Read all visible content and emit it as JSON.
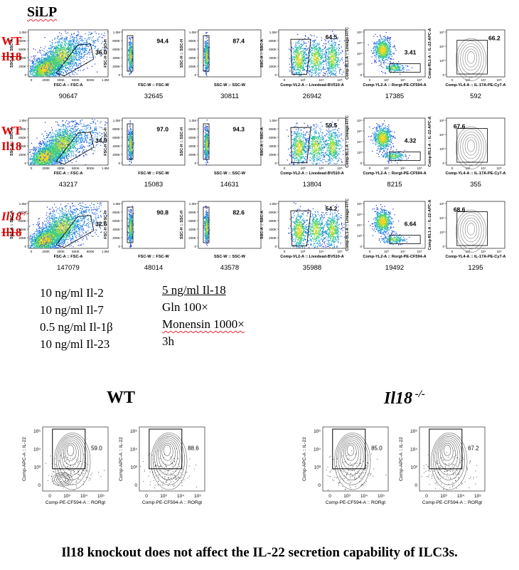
{
  "header": {
    "title": "SiLP"
  },
  "rows": [
    {
      "label_line1": "WT",
      "label_line2": "Il18",
      "line1_italic": false,
      "line1_sup": "",
      "line2_strike": true,
      "plots": [
        {
          "type": "scatter",
          "xlabel": "FSC-A :: FSC-A",
          "ylabel": "SSC-A :: SSC-A",
          "pct": "36.0",
          "count": "90647",
          "xticks": [
            "0",
            "200K",
            "400K",
            "600K",
            "800K",
            "1.0M"
          ],
          "yticks": [
            "1.0M",
            "800K",
            "600K",
            "400K",
            "200K",
            "0"
          ]
        },
        {
          "type": "narrow",
          "xlabel": "FSC-W :: FSC-W",
          "ylabel": "FSC-H :: FSC-H",
          "pct": "94.4",
          "count": "32645",
          "xticks": [],
          "yticks": [
            "1.0M",
            "800K",
            "600K",
            "400K",
            "200K",
            "0"
          ]
        },
        {
          "type": "narrow",
          "xlabel": "SSC-W :: SSC-W",
          "ylabel": "SSC-H :: SSC-H",
          "pct": "87.4",
          "count": "30811",
          "xticks": [],
          "yticks": [
            "1.0M",
            "800K",
            "600K",
            "400K",
            "200K",
            "0"
          ]
        },
        {
          "type": "live",
          "xlabel": "Comp-VL2-A :: Livedead-BV510-A",
          "ylabel": "SSC-A :: SSC-A",
          "pct": "64.5",
          "count": "26942",
          "xticks": [],
          "yticks": [
            "1.0M",
            "800K",
            "600K",
            "400K",
            "200K",
            "0"
          ]
        },
        {
          "type": "lin",
          "xlabel": "Comp-YL2-A :: Rorgt-PE-CF594-A",
          "ylabel": "Comp-BL1-A :: Lineage-FITC",
          "pct": "3.41",
          "count": "17385",
          "xticks": [],
          "yticks": [
            "10⁶",
            "10⁵",
            "10⁴",
            "10³",
            "0"
          ]
        },
        {
          "type": "contour",
          "xlabel": "Comp-YL4-A :: IL-17A-PE-Cy7-A",
          "ylabel": "Comp-RL1-A :: IL-22-APC-A",
          "pct": "66.2",
          "count": "592",
          "xticks": [],
          "yticks": [
            "10⁵",
            "10⁴",
            "10³",
            "0"
          ]
        }
      ]
    },
    {
      "label_line1": "WT",
      "label_line2": "Il18",
      "line1_italic": false,
      "line1_sup": "",
      "line2_strike": false,
      "plots": [
        {
          "type": "scatter",
          "xlabel": "FSC-A :: FSC-A",
          "ylabel": "SSC-A :: SSC-A",
          "pct": "34.9",
          "count": "43217",
          "xticks": [
            "0",
            "200K",
            "400K",
            "600K",
            "800K",
            "1.0M"
          ],
          "yticks": [
            "1.0M",
            "800K",
            "600K",
            "400K",
            "200K",
            "0"
          ]
        },
        {
          "type": "narrow",
          "xlabel": "FSC-W :: FSC-W",
          "ylabel": "FSC-H :: FSC-H",
          "pct": "97.0",
          "count": "15083",
          "xticks": [],
          "yticks": [
            "1.0M",
            "800K",
            "600K",
            "400K",
            "200K",
            "0"
          ]
        },
        {
          "type": "narrow",
          "xlabel": "SSC-W :: SSC-W",
          "ylabel": "SSC-H :: SSC-H",
          "pct": "94.3",
          "count": "14631",
          "xticks": [],
          "yticks": [
            "1.0M",
            "800K",
            "600K",
            "400K",
            "200K",
            "0"
          ]
        },
        {
          "type": "live",
          "xlabel": "Comp-VL2-A :: Livedead-BV510-A",
          "ylabel": "SSC-A :: SSC-A",
          "pct": "59.5",
          "count": "13804",
          "xticks": [],
          "yticks": [
            "1.0M",
            "800K",
            "600K",
            "400K",
            "200K",
            "0"
          ]
        },
        {
          "type": "lin",
          "xlabel": "Comp-YL2-A :: Rorgt-PE-CF594-A",
          "ylabel": "Comp-BL1-A :: Lineage-FITC",
          "pct": "4.32",
          "count": "8215",
          "xticks": [],
          "yticks": [
            "10⁶",
            "10⁵",
            "10⁴",
            "10³",
            "0"
          ]
        },
        {
          "type": "contour",
          "xlabel": "Comp-YL4-A :: IL-17A-PE-Cy7-A",
          "ylabel": "Comp-RL1-A :: IL-22-APC-A",
          "pct": "67.6",
          "count": "355",
          "xticks": [],
          "yticks": [
            "10⁵",
            "10⁴",
            "10³",
            "0"
          ]
        }
      ]
    },
    {
      "label_line1": "Il18",
      "label_line2": "Il18",
      "line1_italic": true,
      "line1_sup": "-/-",
      "line2_strike": true,
      "plots": [
        {
          "type": "scatter",
          "xlabel": "FSC-A :: FSC-A",
          "ylabel": "SSC-A :: SSC-A",
          "pct": "32.6",
          "count": "147079",
          "xticks": [
            "0",
            "200K",
            "400K",
            "600K",
            "800K",
            "1.0M"
          ],
          "yticks": [
            "1.0M",
            "800K",
            "600K",
            "400K",
            "200K",
            "0"
          ]
        },
        {
          "type": "narrow",
          "xlabel": "FSC-W :: FSC-W",
          "ylabel": "FSC-H :: FSC-H",
          "pct": "90.8",
          "count": "48014",
          "xticks": [],
          "yticks": [
            "1.0M",
            "800K",
            "600K",
            "400K",
            "200K",
            "0"
          ]
        },
        {
          "type": "narrow",
          "xlabel": "SSC-W :: SSC-W",
          "ylabel": "SSC-H :: SSC-H",
          "pct": "82.6",
          "count": "43578",
          "xticks": [],
          "yticks": [
            "1.0M",
            "800K",
            "600K",
            "400K",
            "200K",
            "0"
          ]
        },
        {
          "type": "live",
          "xlabel": "Comp-VL2-A :: Livedead-BV510-A",
          "ylabel": "SSC-A :: SSC-A",
          "pct": "54.2",
          "count": "35988",
          "xticks": [],
          "yticks": [
            "1.0M",
            "800K",
            "600K",
            "400K",
            "200K",
            "0"
          ]
        },
        {
          "type": "lin",
          "xlabel": "Comp-YL2-A :: Rorgt-PE-CF594-A",
          "ylabel": "Comp-BL1-A :: Lineage-FITC",
          "pct": "6.64",
          "count": "19492",
          "xticks": [],
          "yticks": [
            "10⁶",
            "10⁵",
            "10⁴",
            "10³",
            "0"
          ]
        },
        {
          "type": "contour",
          "xlabel": "Comp-YL4-A :: IL-17A-PE-Cy7-A",
          "ylabel": "Comp-RL1-A :: IL-22-APC-A",
          "pct": "68.6",
          "count": "1295",
          "xticks": [],
          "yticks": [
            "10⁵",
            "10⁴",
            "10³",
            "0"
          ]
        }
      ]
    }
  ],
  "conditions": {
    "left": [
      "10 ng/ml Il-2",
      "10 ng/ml Il-7",
      "0.5 ng/ml Il-1β",
      "10 ng/ml Il-23"
    ],
    "right": [
      "5 ng/ml Il-18",
      "Gln 100×",
      "Monensin 1000×",
      "3h"
    ]
  },
  "bottom": {
    "wt_title": "WT",
    "ko_title_main": "Il18",
    "ko_title_sup": " -/-",
    "plots": [
      {
        "pct": "59.0",
        "xlabel": "Comp-PE-CF594-A :: RORgt",
        "ylabel": "Comp-APC-A :: IL-22"
      },
      {
        "pct": "88.6",
        "xlabel": "Comp-PE-CF594-A :: RORgt",
        "ylabel": "Comp-APC-A :: IL-22"
      },
      {
        "pct": "85.0",
        "xlabel": "Comp-PE-CF594-A :: RORgt",
        "ylabel": "Comp-APC-A :: IL-22"
      },
      {
        "pct": "67.2",
        "xlabel": "Comp-PE-CF594-A :: RORgt",
        "ylabel": "Comp-APC-A :: IL-22"
      }
    ],
    "xticks": [
      "0",
      "10³",
      "10⁴",
      "10⁵"
    ],
    "yticks": [
      "10⁵",
      "10⁴",
      "10³",
      "0"
    ]
  },
  "caption": "Il18 knockout does not affect the IL-22 secretion capability of ILC3s.",
  "colors": {
    "label_red": "#e00000",
    "density_low": "#1a2fd0",
    "density_mid": "#22c0a0",
    "density_high": "#f5d020"
  }
}
